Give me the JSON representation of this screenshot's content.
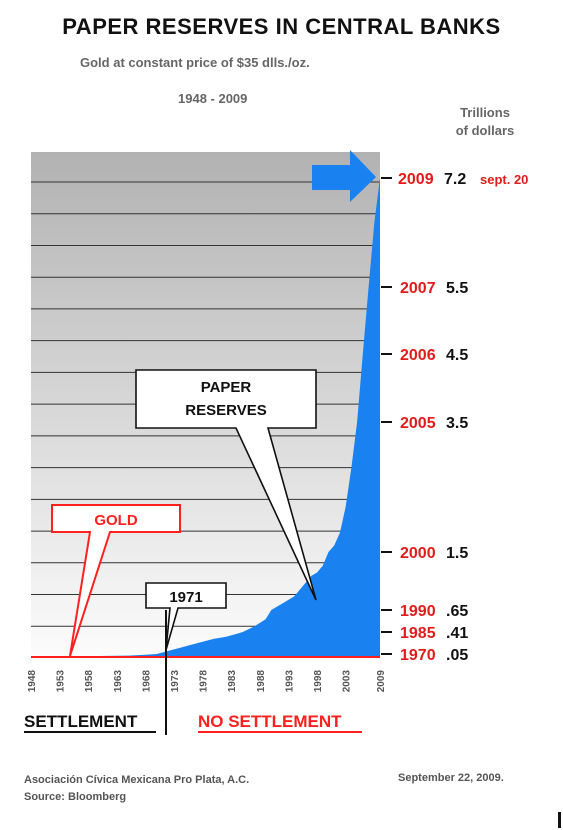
{
  "title": "PAPER RESERVES IN CENTRAL BANKS",
  "subtitle": "Gold at constant price of $35 dlls./oz.",
  "period": "1948 - 2009",
  "units": [
    "Trillions",
    "of dollars"
  ],
  "footer": {
    "org": "Asociación Cívica Mexicana Pro Plata, A.C.",
    "source": "Source: Bloomberg",
    "date": "September 22, 2009."
  },
  "colors": {
    "paper": "#1a82f0",
    "gold": "#ff2020",
    "label_red": "#e21b1b"
  },
  "chart_data": {
    "type": "area",
    "title": "PAPER RESERVES IN CENTRAL BANKS",
    "subtitle": "Gold at constant price of $35 dlls./oz.",
    "x_tick_labels": [
      "1948",
      "1953",
      "1958",
      "1963",
      "1968",
      "1973",
      "1978",
      "1983",
      "1988",
      "1993",
      "1998",
      "2003",
      "2009"
    ],
    "xlim": [
      1948,
      2009
    ],
    "ylabel": "Trillions of dollars",
    "grid": true,
    "series": [
      {
        "name": "PAPER RESERVES",
        "x": [
          1948,
          1955,
          1960,
          1965,
          1968,
          1970,
          1972,
          1974,
          1976,
          1978,
          1980,
          1982,
          1984,
          1985,
          1987,
          1989,
          1990,
          1992,
          1994,
          1995,
          1996,
          1997,
          1998,
          1999,
          2000,
          2001,
          2002,
          2003,
          2004,
          2005,
          2006,
          2007,
          2008,
          2009
        ],
        "y": [
          0.02,
          0.02,
          0.025,
          0.03,
          0.04,
          0.05,
          0.1,
          0.15,
          0.2,
          0.25,
          0.3,
          0.33,
          0.38,
          0.41,
          0.47,
          0.55,
          0.65,
          0.75,
          0.85,
          0.95,
          1.05,
          1.15,
          1.2,
          1.3,
          1.5,
          1.6,
          1.8,
          2.2,
          2.8,
          3.5,
          4.5,
          5.5,
          6.5,
          7.2
        ]
      },
      {
        "name": "GOLD",
        "x": [
          1948,
          2009
        ],
        "y": [
          0.03,
          0.03
        ]
      }
    ],
    "value_labels": [
      {
        "year": "2009",
        "value": "7.2",
        "note": "sept. 20"
      },
      {
        "year": "2007",
        "value": "5.5"
      },
      {
        "year": "2006",
        "value": "4.5"
      },
      {
        "year": "2005",
        "value": "3.5"
      },
      {
        "year": "2000",
        "value": "1.5"
      },
      {
        "year": "1990",
        "value": ".65"
      },
      {
        "year": "1985",
        "value": ".41"
      },
      {
        "year": "1970",
        "value": ".05"
      }
    ],
    "annotations": {
      "paper": [
        "PAPER",
        "RESERVES"
      ],
      "gold": "GOLD",
      "year_1971": "1971",
      "settlement": "SETTLEMENT",
      "no_settlement": "NO SETTLEMENT"
    }
  }
}
